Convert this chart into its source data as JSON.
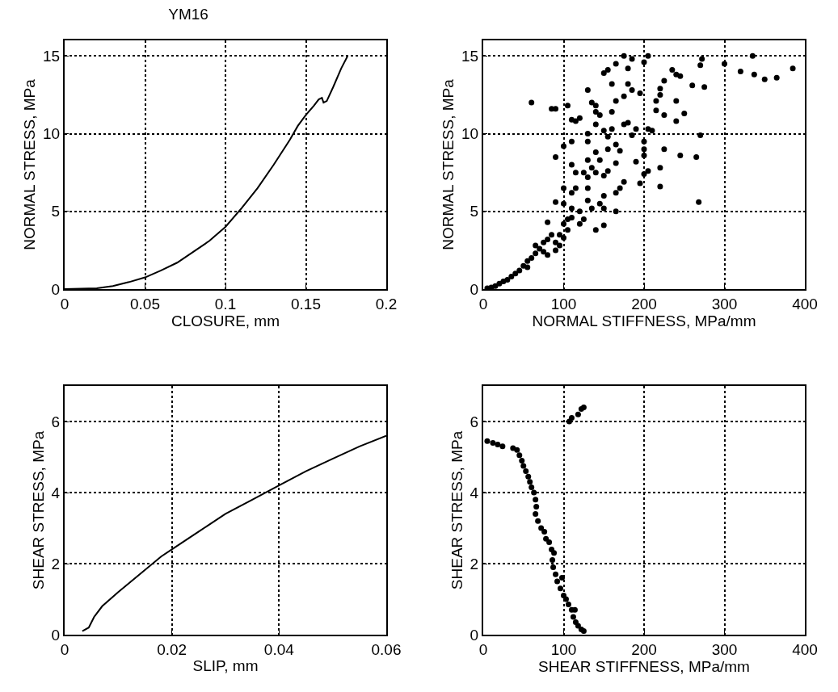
{
  "chart_data": [
    {
      "type": "line",
      "title": "YM16",
      "xlabel": "CLOSURE, mm",
      "ylabel": "NORMAL STRESS, MPa",
      "xlim": [
        0,
        0.2
      ],
      "xticks": [
        0,
        0.05,
        0.1,
        0.15,
        0.2
      ],
      "ylim": [
        0,
        16
      ],
      "yticks": [
        0,
        5,
        10,
        15
      ],
      "grid": true,
      "color": "#000000",
      "x": [
        0,
        0.02,
        0.03,
        0.04,
        0.05,
        0.06,
        0.07,
        0.08,
        0.09,
        0.1,
        0.11,
        0.12,
        0.13,
        0.14,
        0.145,
        0.15,
        0.155,
        0.158,
        0.16,
        0.161,
        0.163,
        0.167,
        0.172,
        0.176
      ],
      "values": [
        0,
        0.05,
        0.2,
        0.45,
        0.75,
        1.2,
        1.7,
        2.4,
        3.1,
        4.0,
        5.2,
        6.5,
        8.0,
        9.6,
        10.5,
        11.2,
        11.8,
        12.2,
        12.3,
        12.0,
        12.1,
        13.0,
        14.2,
        15.0
      ]
    },
    {
      "type": "scatter",
      "xlabel": "NORMAL STIFFNESS, MPa/mm",
      "ylabel": "NORMAL STRESS, MPa",
      "xlim": [
        0,
        400
      ],
      "xticks": [
        0,
        100,
        200,
        300,
        400
      ],
      "ylim": [
        0,
        16
      ],
      "yticks": [
        0,
        5,
        10,
        15
      ],
      "grid": true,
      "marker": "circle",
      "color": "#000000",
      "x": [
        5,
        10,
        15,
        20,
        25,
        30,
        35,
        40,
        45,
        50,
        55,
        55,
        60,
        65,
        65,
        70,
        75,
        75,
        80,
        85,
        80,
        90,
        90,
        95,
        95,
        100,
        100,
        105,
        105,
        110,
        110,
        100,
        90,
        80,
        85,
        90,
        60,
        90,
        100,
        100,
        105,
        110,
        115,
        120,
        110,
        110,
        115,
        115,
        110,
        120,
        125,
        120,
        130,
        130,
        130,
        130,
        135,
        125,
        130,
        130,
        130,
        135,
        140,
        140,
        145,
        140,
        145,
        140,
        140,
        135,
        140,
        145,
        150,
        150,
        150,
        150,
        155,
        155,
        155,
        160,
        150,
        160,
        150,
        155,
        160,
        165,
        165,
        165,
        170,
        170,
        165,
        165,
        165,
        175,
        175,
        180,
        175,
        180,
        175,
        180,
        185,
        185,
        185,
        190,
        190,
        195,
        195,
        200,
        205,
        200,
        200,
        200,
        200,
        205,
        205,
        210,
        215,
        220,
        215,
        220,
        225,
        225,
        225,
        220,
        220,
        235,
        240,
        245,
        240,
        240,
        245,
        250,
        260,
        270,
        272,
        275,
        270,
        265,
        268,
        300,
        320,
        335,
        337,
        350,
        365,
        385
      ],
      "values": [
        0.05,
        0.1,
        0.2,
        0.35,
        0.5,
        0.6,
        0.8,
        1.0,
        1.2,
        1.5,
        1.8,
        1.4,
        2.0,
        2.3,
        2.8,
        2.6,
        2.4,
        3.0,
        3.2,
        3.5,
        2.2,
        2.5,
        3.0,
        2.8,
        3.5,
        3.3,
        4.2,
        3.8,
        4.5,
        4.6,
        5.2,
        5.5,
        5.6,
        4.3,
        11.6,
        11.6,
        12.0,
        8.5,
        6.5,
        9.2,
        11.8,
        10.9,
        10.8,
        11.0,
        9.5,
        8.0,
        7.5,
        6.5,
        6.2,
        4.2,
        4.5,
        5.0,
        5.7,
        6.5,
        7.2,
        8.3,
        7.8,
        7.5,
        9.5,
        10.0,
        12.8,
        12.0,
        11.8,
        11.4,
        11.2,
        10.6,
        8.3,
        8.8,
        7.5,
        5.2,
        3.8,
        5.5,
        5.2,
        4.1,
        6.0,
        7.3,
        7.6,
        9.0,
        9.8,
        10.3,
        10.2,
        11.4,
        13.9,
        14.1,
        13.2,
        14.5,
        12.1,
        9.3,
        8.9,
        6.5,
        6.2,
        8.1,
        5.0,
        6.9,
        10.6,
        10.7,
        12.4,
        13.2,
        15.0,
        14.2,
        14.8,
        12.8,
        9.9,
        10.3,
        8.2,
        6.8,
        12.6,
        14.6,
        15.0,
        9.5,
        9.0,
        8.6,
        7.4,
        7.6,
        10.3,
        10.2,
        12.1,
        12.9,
        11.5,
        12.5,
        11.2,
        13.4,
        9.0,
        7.8,
        6.6,
        14.1,
        13.8,
        13.7,
        12.1,
        10.8,
        8.6,
        11.3,
        13.1,
        14.4,
        14.8,
        13.0,
        9.9,
        8.5,
        5.6,
        14.5,
        14.0,
        15.0,
        13.8,
        13.5,
        13.6,
        14.2
      ]
    },
    {
      "type": "line",
      "xlabel": "SLIP, mm",
      "ylabel": "SHEAR STRESS, MPa",
      "xlim": [
        0,
        0.06
      ],
      "xticks": [
        0,
        0.02,
        0.04,
        0.06
      ],
      "ylim": [
        0,
        7
      ],
      "yticks": [
        0,
        2,
        4,
        6
      ],
      "grid": true,
      "color": "#000000",
      "x": [
        0.0033,
        0.0045,
        0.0055,
        0.007,
        0.01,
        0.014,
        0.018,
        0.02,
        0.025,
        0.03,
        0.035,
        0.04,
        0.045,
        0.05,
        0.055,
        0.06
      ],
      "values": [
        0.1,
        0.2,
        0.5,
        0.8,
        1.2,
        1.7,
        2.2,
        2.4,
        2.9,
        3.4,
        3.8,
        4.2,
        4.6,
        4.95,
        5.3,
        5.6
      ]
    },
    {
      "type": "scatter",
      "xlabel": "SHEAR STIFFNESS, MPa/mm",
      "ylabel": "SHEAR STRESS, MPa",
      "xlim": [
        0,
        400
      ],
      "xticks": [
        0,
        100,
        200,
        300,
        400
      ],
      "ylim": [
        0,
        7
      ],
      "yticks": [
        0,
        2,
        4,
        6
      ],
      "grid": true,
      "marker": "circle",
      "color": "#000000",
      "x": [
        5,
        12,
        18,
        24,
        37,
        42,
        45,
        48,
        50,
        53,
        56,
        58,
        60,
        63,
        65,
        66,
        65,
        68,
        72,
        76,
        78,
        82,
        85,
        88,
        86,
        87,
        90,
        92,
        98,
        96,
        100,
        103,
        106,
        110,
        114,
        112,
        115,
        118,
        122,
        125,
        107,
        110,
        118,
        122,
        125
      ],
      "values": [
        5.45,
        5.4,
        5.35,
        5.3,
        5.25,
        5.2,
        5.05,
        4.9,
        4.75,
        4.6,
        4.45,
        4.3,
        4.15,
        4.0,
        3.8,
        3.6,
        3.4,
        3.2,
        3.0,
        2.9,
        2.7,
        2.6,
        2.4,
        2.3,
        2.1,
        1.9,
        1.7,
        1.5,
        1.6,
        1.3,
        1.1,
        1.0,
        0.85,
        0.7,
        0.7,
        0.5,
        0.35,
        0.25,
        0.15,
        0.1,
        6.0,
        6.1,
        6.2,
        6.35,
        6.4
      ]
    }
  ]
}
